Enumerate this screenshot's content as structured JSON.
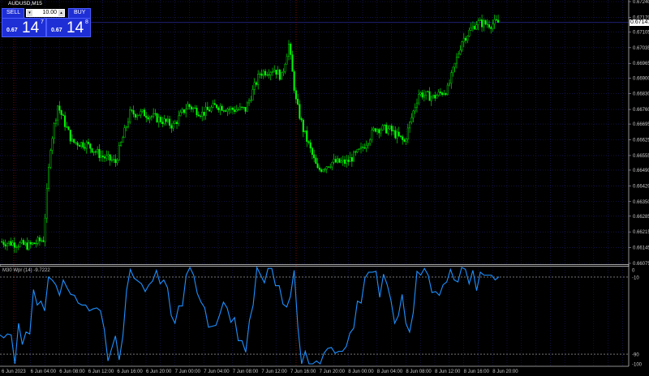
{
  "window": {
    "title": "AUDUSD,M15"
  },
  "trade_panel": {
    "sell_label": "SELL",
    "buy_label": "BUY",
    "lot": "10.00",
    "sell_price_prefix": "0.67",
    "sell_price_big": "14",
    "sell_price_sup": "7",
    "buy_price_prefix": "0.67",
    "buy_price_big": "14",
    "buy_price_sup": "8",
    "colors": {
      "panel": "#1e2fd6"
    }
  },
  "price_axis": {
    "labels": [
      "0.67240",
      "0.67170",
      "0.67105",
      "0.67035",
      "0.66965",
      "0.66900",
      "0.66830",
      "0.66760",
      "0.66695",
      "0.66625",
      "0.66555",
      "0.66490",
      "0.66420",
      "0.66350",
      "0.66285",
      "0.66215",
      "0.66145",
      "0.66075"
    ],
    "current": "0.67147"
  },
  "indicator": {
    "label": "M30 Wpr (14) -9.7222",
    "axis_labels": [
      "0",
      "-10",
      "-90",
      "-100"
    ],
    "levels": [
      -10,
      -90
    ],
    "color": "#1e90ff"
  },
  "time_axis": {
    "labels": [
      "6 Jun 2023",
      "6 Jun 04:00",
      "6 Jun 08:00",
      "6 Jun 12:00",
      "6 Jun 16:00",
      "6 Jun 20:00",
      "7 Jun 00:00",
      "7 Jun 04:00",
      "7 Jun 08:00",
      "7 Jun 12:00",
      "7 Jun 16:00",
      "7 Jun 20:00",
      "8 Jun 00:00",
      "8 Jun 04:00",
      "8 Jun 08:00",
      "8 Jun 12:00",
      "8 Jun 16:00",
      "8 Jun 20:00"
    ]
  },
  "chart_data": [
    {
      "type": "candlestick",
      "symbol": "AUDUSD",
      "timeframe": "M15",
      "ylim": [
        0.66075,
        0.6724
      ],
      "colors": {
        "candle": "#00ff00",
        "background": "#000000",
        "grid": "#1c1c6e"
      },
      "closes": [
        {
          "time": "6 Jun 00:00",
          "close": 0.66171
        },
        {
          "time": "6 Jun 02:00",
          "close": 0.66164
        },
        {
          "time": "6 Jun 04:00",
          "close": 0.66153
        },
        {
          "time": "6 Jun 06:00",
          "close": 0.66182
        },
        {
          "time": "6 Jun 07:00",
          "close": 0.66597
        },
        {
          "time": "6 Jun 08:00",
          "close": 0.66778
        },
        {
          "time": "6 Jun 10:00",
          "close": 0.66615
        },
        {
          "time": "6 Jun 12:00",
          "close": 0.66605
        },
        {
          "time": "6 Jun 14:00",
          "close": 0.66554
        },
        {
          "time": "6 Jun 16:00",
          "close": 0.66525
        },
        {
          "time": "6 Jun 18:00",
          "close": 0.66742
        },
        {
          "time": "6 Jun 20:00",
          "close": 0.66742
        },
        {
          "time": "6 Jun 22:00",
          "close": 0.66717
        },
        {
          "time": "7 Jun 00:00",
          "close": 0.66688
        },
        {
          "time": "7 Jun 02:00",
          "close": 0.66778
        },
        {
          "time": "7 Jun 04:00",
          "close": 0.66742
        },
        {
          "time": "7 Jun 06:00",
          "close": 0.66778
        },
        {
          "time": "7 Jun 08:00",
          "close": 0.6676
        },
        {
          "time": "7 Jun 10:00",
          "close": 0.6676
        },
        {
          "time": "7 Jun 12:00",
          "close": 0.66922
        },
        {
          "time": "7 Jun 14:00",
          "close": 0.6694
        },
        {
          "time": "7 Jun 15:00",
          "close": 0.66904
        },
        {
          "time": "7 Jun 16:00",
          "close": 0.67049
        },
        {
          "time": "7 Jun 17:00",
          "close": 0.66796
        },
        {
          "time": "7 Jun 18:00",
          "close": 0.6667
        },
        {
          "time": "7 Jun 20:00",
          "close": 0.66489
        },
        {
          "time": "7 Jun 22:00",
          "close": 0.66525
        },
        {
          "time": "8 Jun 00:00",
          "close": 0.66525
        },
        {
          "time": "8 Jun 02:00",
          "close": 0.66579
        },
        {
          "time": "8 Jun 04:00",
          "close": 0.66677
        },
        {
          "time": "8 Jun 06:00",
          "close": 0.6667
        },
        {
          "time": "8 Jun 08:00",
          "close": 0.66615
        },
        {
          "time": "8 Jun 10:00",
          "close": 0.66832
        },
        {
          "time": "8 Jun 12:00",
          "close": 0.66814
        },
        {
          "time": "8 Jun 14:00",
          "close": 0.6685
        },
        {
          "time": "8 Jun 16:00",
          "close": 0.67067
        },
        {
          "time": "8 Jun 18:00",
          "close": 0.67146
        },
        {
          "time": "8 Jun 20:00",
          "close": 0.67139
        },
        {
          "time": "8 Jun 21:00",
          "close": 0.67147
        }
      ]
    },
    {
      "type": "line",
      "name": "M30 Wpr (14)",
      "ylim": [
        -100,
        0
      ],
      "timeframe": "M30",
      "values": [
        -70,
        -73,
        -69,
        -70,
        -100,
        -58,
        -80,
        -67,
        -69,
        -23,
        -39,
        -35,
        -45,
        -10,
        -13,
        -18,
        -29,
        -13,
        -21,
        -28,
        -29,
        -37,
        -39,
        -39,
        -45,
        -43,
        -42,
        -45,
        -64,
        -97,
        -84,
        -71,
        -96,
        -71,
        -24,
        -2,
        -11,
        -14,
        -17,
        -25,
        -18,
        -14,
        -3,
        -17,
        -13,
        -21,
        -50,
        -58,
        -40,
        -40,
        -8,
        0,
        -8,
        -27,
        -36,
        -42,
        -62,
        -61,
        -60,
        -49,
        -36,
        -42,
        -57,
        -52,
        -76,
        -76,
        -88,
        -55,
        -39,
        0,
        -8,
        -16,
        -1,
        -1,
        -19,
        -19,
        -38,
        -41,
        -30,
        -3,
        -62,
        -100,
        -87,
        -100,
        -100,
        -97,
        -100,
        -89,
        -84,
        -83,
        -89,
        -87,
        -87,
        -82,
        -68,
        -63,
        -35,
        -37,
        -11,
        -5,
        -5,
        -4,
        -31,
        -7,
        -18,
        -34,
        -58,
        -50,
        -28,
        -58,
        -67,
        -47,
        -4,
        -8,
        -1,
        -8,
        -26,
        -25,
        -29,
        -18,
        -15,
        -2,
        -13,
        -15,
        0,
        -2,
        -17,
        -3,
        -24,
        -5,
        -8,
        -8,
        -8,
        -13,
        -9.7222
      ]
    }
  ]
}
